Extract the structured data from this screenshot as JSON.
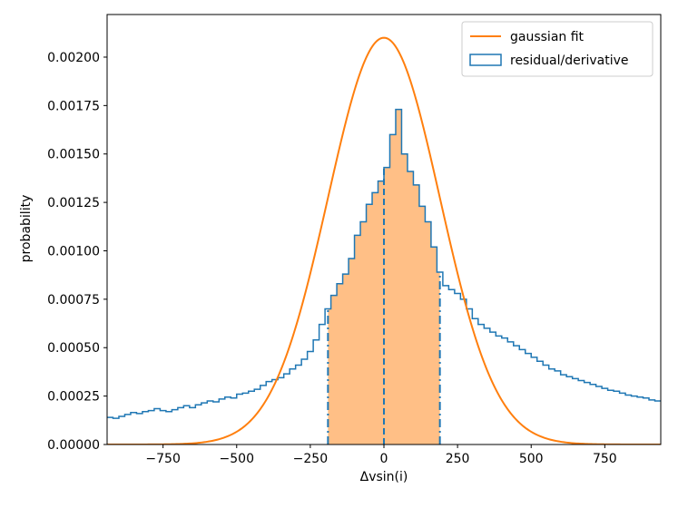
{
  "chart_data": {
    "type": "bar",
    "xlabel": "Δvsin(i)",
    "ylabel": "probability",
    "xlim": [
      -940,
      940
    ],
    "ylim": [
      0,
      0.00222
    ],
    "xticks": [
      -750,
      -500,
      -250,
      0,
      250,
      500,
      750
    ],
    "xtick_labels": [
      "−750",
      "−500",
      "−250",
      "0",
      "250",
      "500",
      "750"
    ],
    "yticks": [
      0,
      0.00025,
      0.0005,
      0.00075,
      0.001,
      0.00125,
      0.0015,
      0.00175,
      0.002
    ],
    "ytick_labels": [
      "0.00000",
      "0.00025",
      "0.00050",
      "0.00075",
      "0.00100",
      "0.00125",
      "0.00150",
      "0.00175",
      "0.00200"
    ],
    "legend": [
      "gaussian fit",
      "residual/derivative"
    ],
    "legend_position": "top-right",
    "colors": {
      "hist": "#1f77b4",
      "fit": "#ff7f0e",
      "fill": "#ffbf86"
    },
    "histogram": {
      "bin_width": 20,
      "bin_start": -940,
      "values": [
        0.00014,
        0.000135,
        0.000145,
        0.000155,
        0.000165,
        0.00016,
        0.00017,
        0.000175,
        0.000185,
        0.000175,
        0.00017,
        0.00018,
        0.00019,
        0.0002,
        0.00019,
        0.000205,
        0.000215,
        0.000225,
        0.00022,
        0.000235,
        0.000245,
        0.00024,
        0.00026,
        0.000265,
        0.000275,
        0.000285,
        0.000305,
        0.000325,
        0.000335,
        0.000345,
        0.000365,
        0.00039,
        0.00041,
        0.00044,
        0.00048,
        0.00054,
        0.00062,
        0.0007,
        0.00077,
        0.00083,
        0.00088,
        0.00096,
        0.00108,
        0.00115,
        0.00124,
        0.0013,
        0.00136,
        0.00143,
        0.0016,
        0.00173,
        0.0015,
        0.00141,
        0.00134,
        0.00123,
        0.00115,
        0.00102,
        0.00089,
        0.00082,
        0.0008,
        0.00078,
        0.00075,
        0.0007,
        0.00065,
        0.00062,
        0.0006,
        0.00058,
        0.00056,
        0.00055,
        0.00053,
        0.00051,
        0.00049,
        0.00047,
        0.00045,
        0.00043,
        0.00041,
        0.00039,
        0.00038,
        0.00036,
        0.00035,
        0.00034,
        0.00033,
        0.00032,
        0.00031,
        0.0003,
        0.00029,
        0.00028,
        0.000275,
        0.000265,
        0.000255,
        0.00025,
        0.000245,
        0.00024,
        0.00023,
        0.000225
      ]
    },
    "gaussian_fit": {
      "mu": 0,
      "sigma": 190,
      "peak": 0.0021
    },
    "shaded_region": [
      -190,
      190
    ],
    "vlines_dashdot": [
      -190,
      190
    ],
    "vline_dashed": 0
  }
}
